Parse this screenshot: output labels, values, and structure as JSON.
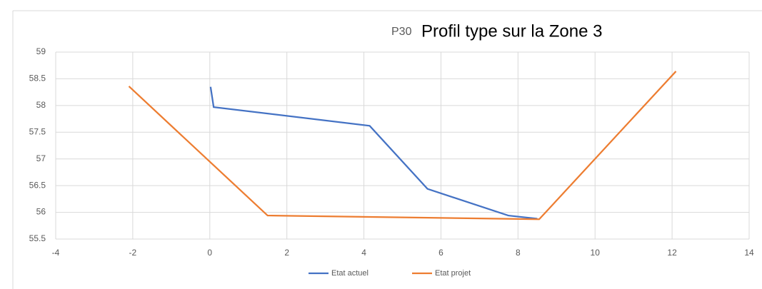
{
  "chart_data": {
    "type": "line",
    "title": "Profil type sur la Zone 3",
    "annotation": "P30",
    "series": [
      {
        "name": "Etat actuel",
        "color": "#4472c4",
        "x": [
          0.02,
          0.1,
          4.15,
          5.65,
          7.75,
          8.5
        ],
        "values": [
          58.35,
          57.97,
          57.62,
          56.44,
          55.94,
          55.88
        ]
      },
      {
        "name": "Etat projet",
        "color": "#ed7d31",
        "x": [
          -2.1,
          1.5,
          8.55,
          12.1
        ],
        "values": [
          58.36,
          55.94,
          55.87,
          58.64
        ]
      }
    ],
    "xlim": [
      -4,
      14
    ],
    "xticks": [
      -4,
      -2,
      0,
      2,
      4,
      6,
      8,
      10,
      12,
      14
    ],
    "ylim": [
      55.5,
      59
    ],
    "yticks": [
      55.5,
      56,
      56.5,
      57,
      57.5,
      58,
      58.5,
      59
    ],
    "grid": true,
    "legend": "bottom"
  }
}
